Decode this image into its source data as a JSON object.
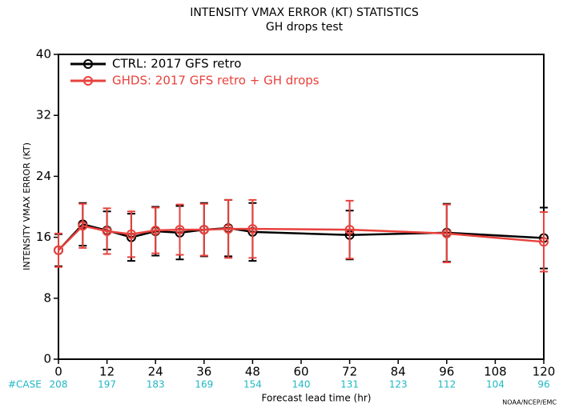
{
  "chart_data": {
    "type": "line",
    "title": "INTENSITY VMAX ERROR (KT) STATISTICS",
    "subtitle": "GH drops test",
    "y_label": "INTENSITY VMAX ERROR (KT)",
    "x_label": "Forecast lead time (hr)",
    "x": [
      0,
      6,
      12,
      18,
      24,
      30,
      36,
      42,
      48,
      72,
      96,
      120
    ],
    "series": [
      {
        "name": "CTRL: 2017 GFS retro",
        "color": "#000000",
        "values": [
          14.3,
          17.7,
          16.9,
          16.0,
          16.8,
          16.6,
          17.0,
          17.2,
          16.7,
          16.3,
          16.6,
          15.9
        ],
        "errors": [
          2.1,
          2.8,
          2.5,
          3.1,
          3.2,
          3.5,
          3.5,
          3.7,
          3.8,
          3.2,
          3.8,
          4.0
        ]
      },
      {
        "name": "GHDS: 2017 GFS retro + GH drops",
        "color": "#e8413c",
        "values": [
          14.3,
          17.5,
          16.8,
          16.4,
          16.9,
          17.0,
          17.0,
          17.1,
          17.1,
          17.0,
          16.5,
          15.4
        ],
        "errors": [
          2.2,
          2.9,
          3.0,
          3.0,
          3.0,
          3.3,
          3.4,
          3.8,
          3.8,
          3.8,
          3.8,
          3.9
        ]
      }
    ],
    "xlim": [
      0,
      120
    ],
    "xticks": [
      0,
      12,
      24,
      36,
      48,
      60,
      72,
      84,
      96,
      108,
      120
    ],
    "ylim": [
      0,
      40
    ],
    "yticks": [
      0,
      8,
      16,
      24,
      32,
      40
    ],
    "legend": "top-left",
    "case_label": "#CASE",
    "case_x": [
      0,
      12,
      24,
      36,
      48,
      60,
      72,
      84,
      96,
      108,
      120
    ],
    "case_counts": [
      208,
      197,
      183,
      169,
      154,
      140,
      131,
      123,
      112,
      104,
      96
    ],
    "footer": "NOAA/NCEP/EMC"
  }
}
